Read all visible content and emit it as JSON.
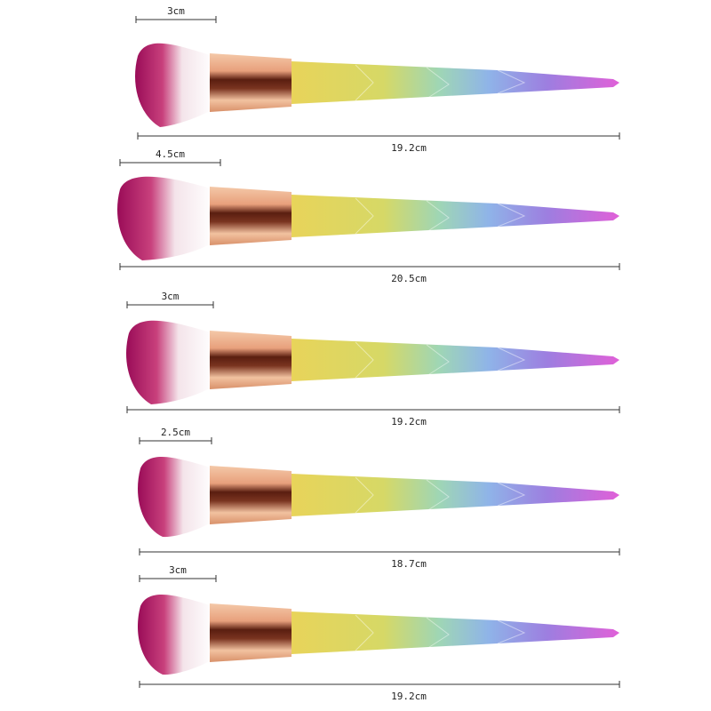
{
  "brushes": [
    {
      "head_width": "3cm",
      "length": "19.2cm"
    },
    {
      "head_width": "4.5cm",
      "length": "20.5cm"
    },
    {
      "head_width": "3cm",
      "length": "19.2cm"
    },
    {
      "head_width": "2.5cm",
      "length": "18.7cm"
    },
    {
      "head_width": "3cm",
      "length": "19.2cm"
    }
  ]
}
